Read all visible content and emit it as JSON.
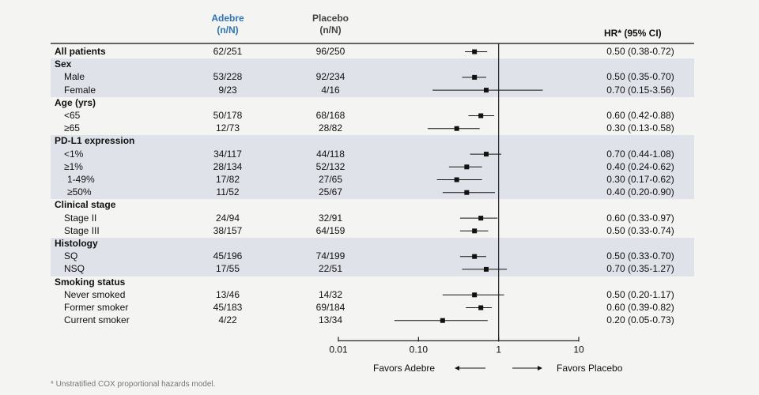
{
  "header": {
    "treatment_name": "Adebre",
    "treatment_sub": "(n/N)",
    "placebo_name": "Placebo",
    "placebo_sub": "(n/N)",
    "hr_header": "HR* (95% CI)"
  },
  "footnote": "* Unstratified COX proportional hazards model.",
  "favors": {
    "left": "Favors Adebre",
    "right": "Favors Placebo"
  },
  "chart_data": {
    "type": "forest",
    "x_scale": "log",
    "xlim": [
      0.01,
      10
    ],
    "x_ticks": [
      "0.01",
      "0.10",
      "1",
      "10"
    ],
    "reference_line": 1,
    "rows": [
      {
        "label": "All patients",
        "kind": "bold",
        "band": false,
        "a": "62/251",
        "b": "96/250",
        "hr": 0.5,
        "lo": 0.38,
        "hi": 0.72,
        "hr_text": "0.50 (0.38-0.72)"
      },
      {
        "label": "Sex",
        "kind": "group",
        "band": true
      },
      {
        "label": "Male",
        "kind": "sub",
        "band": true,
        "a": "53/228",
        "b": "92/234",
        "hr": 0.5,
        "lo": 0.35,
        "hi": 0.7,
        "hr_text": "0.50 (0.35-0.70)"
      },
      {
        "label": "Female",
        "kind": "sub",
        "band": true,
        "a": "9/23",
        "b": "4/16",
        "hr": 0.7,
        "lo": 0.15,
        "hi": 3.56,
        "hr_text": "0.70 (0.15-3.56)"
      },
      {
        "label": "Age (yrs)",
        "kind": "group",
        "band": false
      },
      {
        "label": "<65",
        "kind": "sub",
        "band": false,
        "a": "50/178",
        "b": "68/168",
        "hr": 0.6,
        "lo": 0.42,
        "hi": 0.88,
        "hr_text": "0.60 (0.42-0.88)"
      },
      {
        "label": "≥65",
        "kind": "sub",
        "band": false,
        "a": "12/73",
        "b": "28/82",
        "hr": 0.3,
        "lo": 0.13,
        "hi": 0.58,
        "hr_text": "0.30 (0.13-0.58)"
      },
      {
        "label": "PD-L1 expression",
        "kind": "group",
        "band": true
      },
      {
        "label": "<1%",
        "kind": "sub",
        "band": true,
        "a": "34/117",
        "b": "44/118",
        "hr": 0.7,
        "lo": 0.44,
        "hi": 1.08,
        "hr_text": "0.70 (0.44-1.08)"
      },
      {
        "label": "≥1%",
        "kind": "sub",
        "band": true,
        "a": "28/134",
        "b": "52/132",
        "hr": 0.4,
        "lo": 0.24,
        "hi": 0.62,
        "hr_text": "0.40 (0.24-0.62)"
      },
      {
        "label": "1-49%",
        "kind": "subsub",
        "band": true,
        "a": "17/82",
        "b": "27/65",
        "hr": 0.3,
        "lo": 0.17,
        "hi": 0.62,
        "hr_text": "0.30 (0.17-0.62)"
      },
      {
        "label": "≥50%",
        "kind": "subsub",
        "band": true,
        "a": "11/52",
        "b": "25/67",
        "hr": 0.4,
        "lo": 0.2,
        "hi": 0.9,
        "hr_text": "0.40 (0.20-0.90)"
      },
      {
        "label": "Clinical stage",
        "kind": "group",
        "band": false
      },
      {
        "label": "Stage II",
        "kind": "sub",
        "band": false,
        "a": "24/94",
        "b": "32/91",
        "hr": 0.6,
        "lo": 0.33,
        "hi": 0.97,
        "hr_text": "0.60 (0.33-0.97)"
      },
      {
        "label": "Stage III",
        "kind": "sub",
        "band": false,
        "a": "38/157",
        "b": "64/159",
        "hr": 0.5,
        "lo": 0.33,
        "hi": 0.74,
        "hr_text": "0.50 (0.33-0.74)"
      },
      {
        "label": "Histology",
        "kind": "group",
        "band": true
      },
      {
        "label": "SQ",
        "kind": "sub",
        "band": true,
        "a": "45/196",
        "b": "74/199",
        "hr": 0.5,
        "lo": 0.33,
        "hi": 0.7,
        "hr_text": "0.50 (0.33-0.70)"
      },
      {
        "label": "NSQ",
        "kind": "sub",
        "band": true,
        "a": "17/55",
        "b": "22/51",
        "hr": 0.7,
        "lo": 0.35,
        "hi": 1.27,
        "hr_text": "0.70 (0.35-1.27)"
      },
      {
        "label": "Smoking status",
        "kind": "group",
        "band": false
      },
      {
        "label": "Never smoked",
        "kind": "sub",
        "band": false,
        "a": "13/46",
        "b": "14/32",
        "hr": 0.5,
        "lo": 0.2,
        "hi": 1.17,
        "hr_text": "0.50 (0.20-1.17)"
      },
      {
        "label": "Former smoker",
        "kind": "sub",
        "band": false,
        "a": "45/183",
        "b": "69/184",
        "hr": 0.6,
        "lo": 0.39,
        "hi": 0.82,
        "hr_text": "0.60 (0.39-0.82)"
      },
      {
        "label": "Current smoker",
        "kind": "sub",
        "band": false,
        "a": "4/22",
        "b": "13/34",
        "hr": 0.2,
        "lo": 0.05,
        "hi": 0.73,
        "hr_text": "0.20 (0.05-0.73)"
      }
    ]
  }
}
